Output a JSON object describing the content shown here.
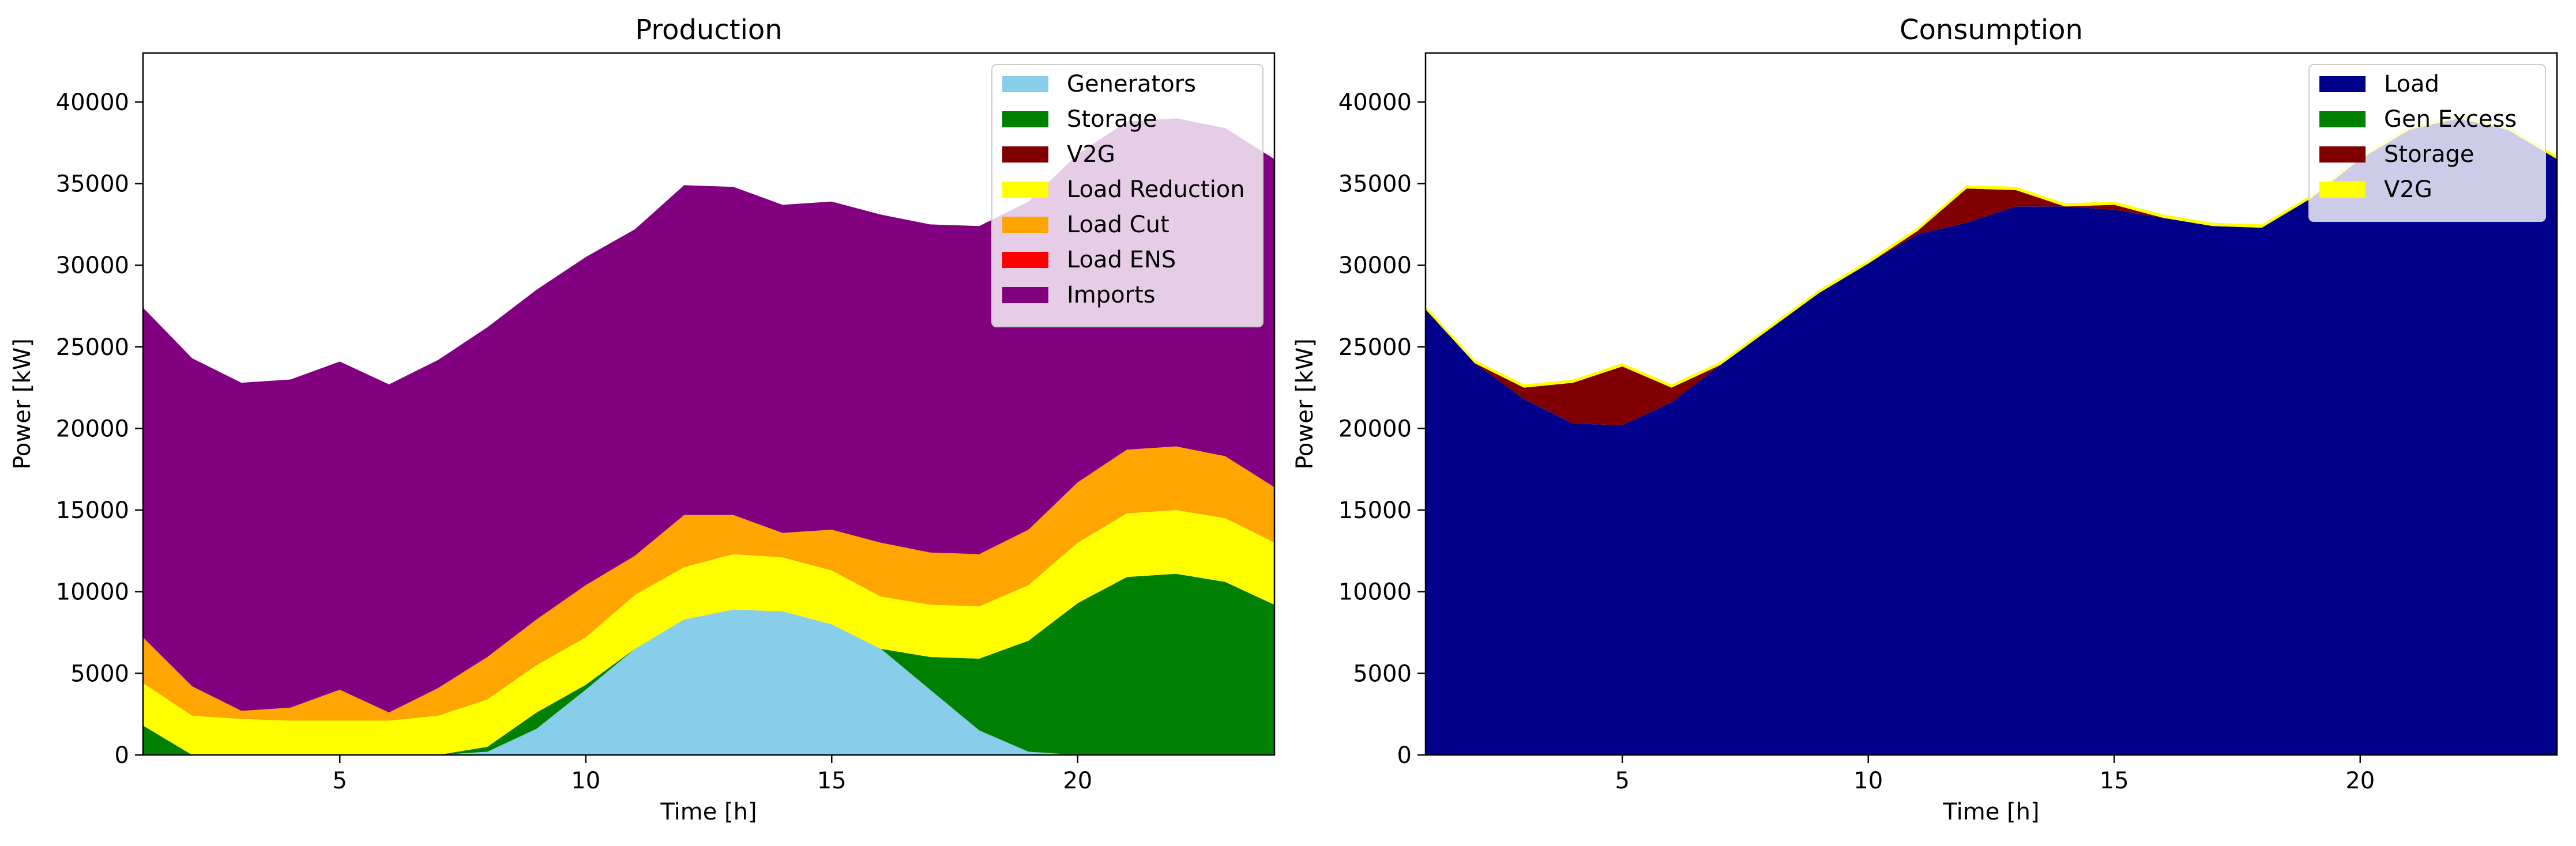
{
  "chart_data": [
    {
      "type": "area",
      "stacked": true,
      "title": "Production",
      "xlabel": "Time [h]",
      "ylabel": "Power [kW]",
      "xlim": [
        1,
        24
      ],
      "ylim": [
        0,
        43000
      ],
      "xticks": [
        5,
        10,
        15,
        20
      ],
      "yticks": [
        0,
        5000,
        10000,
        15000,
        20000,
        25000,
        30000,
        35000,
        40000
      ],
      "legend_position": "top-right",
      "x": [
        1,
        2,
        3,
        4,
        5,
        6,
        7,
        8,
        9,
        10,
        11,
        12,
        13,
        14,
        15,
        16,
        17,
        18,
        19,
        20,
        21,
        22,
        23,
        24
      ],
      "series": [
        {
          "name": "Generators",
          "color": "#87ceeb",
          "values": [
            0,
            0,
            0,
            0,
            0,
            0,
            0,
            200,
            1600,
            4000,
            6500,
            8300,
            8900,
            8800,
            8000,
            6500,
            4000,
            1500,
            200,
            0,
            0,
            0,
            0,
            0
          ]
        },
        {
          "name": "Storage",
          "color": "#008000",
          "values": [
            1800,
            0,
            0,
            0,
            0,
            0,
            0,
            300,
            1000,
            300,
            0,
            0,
            0,
            0,
            0,
            0,
            2000,
            4400,
            6800,
            9300,
            10900,
            11100,
            10600,
            9200
          ]
        },
        {
          "name": "V2G",
          "color": "#800000",
          "values": [
            0,
            0,
            0,
            0,
            0,
            0,
            0,
            0,
            0,
            0,
            0,
            0,
            0,
            0,
            0,
            0,
            0,
            0,
            0,
            0,
            0,
            0,
            0,
            0
          ]
        },
        {
          "name": "Load Reduction",
          "color": "#ffff00",
          "values": [
            2600,
            2400,
            2200,
            2100,
            2100,
            2100,
            2400,
            2900,
            2900,
            2900,
            3300,
            3200,
            3400,
            3300,
            3300,
            3200,
            3200,
            3200,
            3400,
            3700,
            3900,
            3900,
            3900,
            3800
          ]
        },
        {
          "name": "Load Cut",
          "color": "#ffa500",
          "values": [
            2800,
            1800,
            500,
            800,
            1900,
            500,
            1700,
            2600,
            2800,
            3200,
            2400,
            3200,
            2400,
            1500,
            2500,
            3300,
            3200,
            3200,
            3400,
            3700,
            3900,
            3900,
            3800,
            3400
          ]
        },
        {
          "name": "Load ENS",
          "color": "#ff0000",
          "values": [
            0,
            0,
            0,
            0,
            0,
            0,
            0,
            0,
            0,
            0,
            0,
            0,
            0,
            0,
            0,
            0,
            0,
            0,
            0,
            0,
            0,
            0,
            0,
            0
          ]
        },
        {
          "name": "Imports",
          "color": "#800080",
          "values": [
            20200,
            20100,
            20100,
            20100,
            20100,
            20100,
            20100,
            20200,
            20200,
            20100,
            20000,
            20200,
            20100,
            20100,
            20100,
            20100,
            20100,
            20100,
            20100,
            20100,
            20100,
            20100,
            20100,
            20100
          ]
        }
      ]
    },
    {
      "type": "area",
      "stacked": true,
      "title": "Consumption",
      "xlabel": "Time [h]",
      "ylabel": "Power [kW]",
      "xlim": [
        1,
        24
      ],
      "ylim": [
        0,
        43000
      ],
      "xticks": [
        5,
        10,
        15,
        20
      ],
      "yticks": [
        0,
        5000,
        10000,
        15000,
        20000,
        25000,
        30000,
        35000,
        40000
      ],
      "legend_position": "top-right",
      "x": [
        1,
        2,
        3,
        4,
        5,
        6,
        7,
        8,
        9,
        10,
        11,
        12,
        13,
        14,
        15,
        16,
        17,
        18,
        19,
        20,
        21,
        22,
        23,
        24
      ],
      "series": [
        {
          "name": "Load",
          "color": "#00008b",
          "values": [
            27300,
            24000,
            21800,
            20300,
            20200,
            21600,
            23900,
            26100,
            28300,
            30100,
            31900,
            32600,
            33600,
            33600,
            33400,
            32900,
            32400,
            32300,
            34100,
            36500,
            38300,
            39000,
            38300,
            36500
          ]
        },
        {
          "name": "Gen Excess",
          "color": "#008000",
          "values": [
            0,
            0,
            0,
            0,
            0,
            0,
            0,
            0,
            0,
            0,
            0,
            0,
            0,
            0,
            0,
            0,
            0,
            0,
            0,
            0,
            0,
            0,
            0,
            0
          ]
        },
        {
          "name": "Storage",
          "color": "#800000",
          "values": [
            0,
            0,
            700,
            2500,
            3600,
            900,
            0,
            0,
            0,
            0,
            200,
            2100,
            1000,
            0,
            300,
            0,
            0,
            0,
            0,
            0,
            0,
            0,
            0,
            0
          ]
        },
        {
          "name": "V2G",
          "color": "#ffff00",
          "values": [
            200,
            200,
            200,
            200,
            200,
            200,
            200,
            200,
            200,
            200,
            200,
            200,
            200,
            200,
            200,
            200,
            200,
            200,
            200,
            200,
            200,
            200,
            200,
            200
          ]
        }
      ]
    }
  ]
}
